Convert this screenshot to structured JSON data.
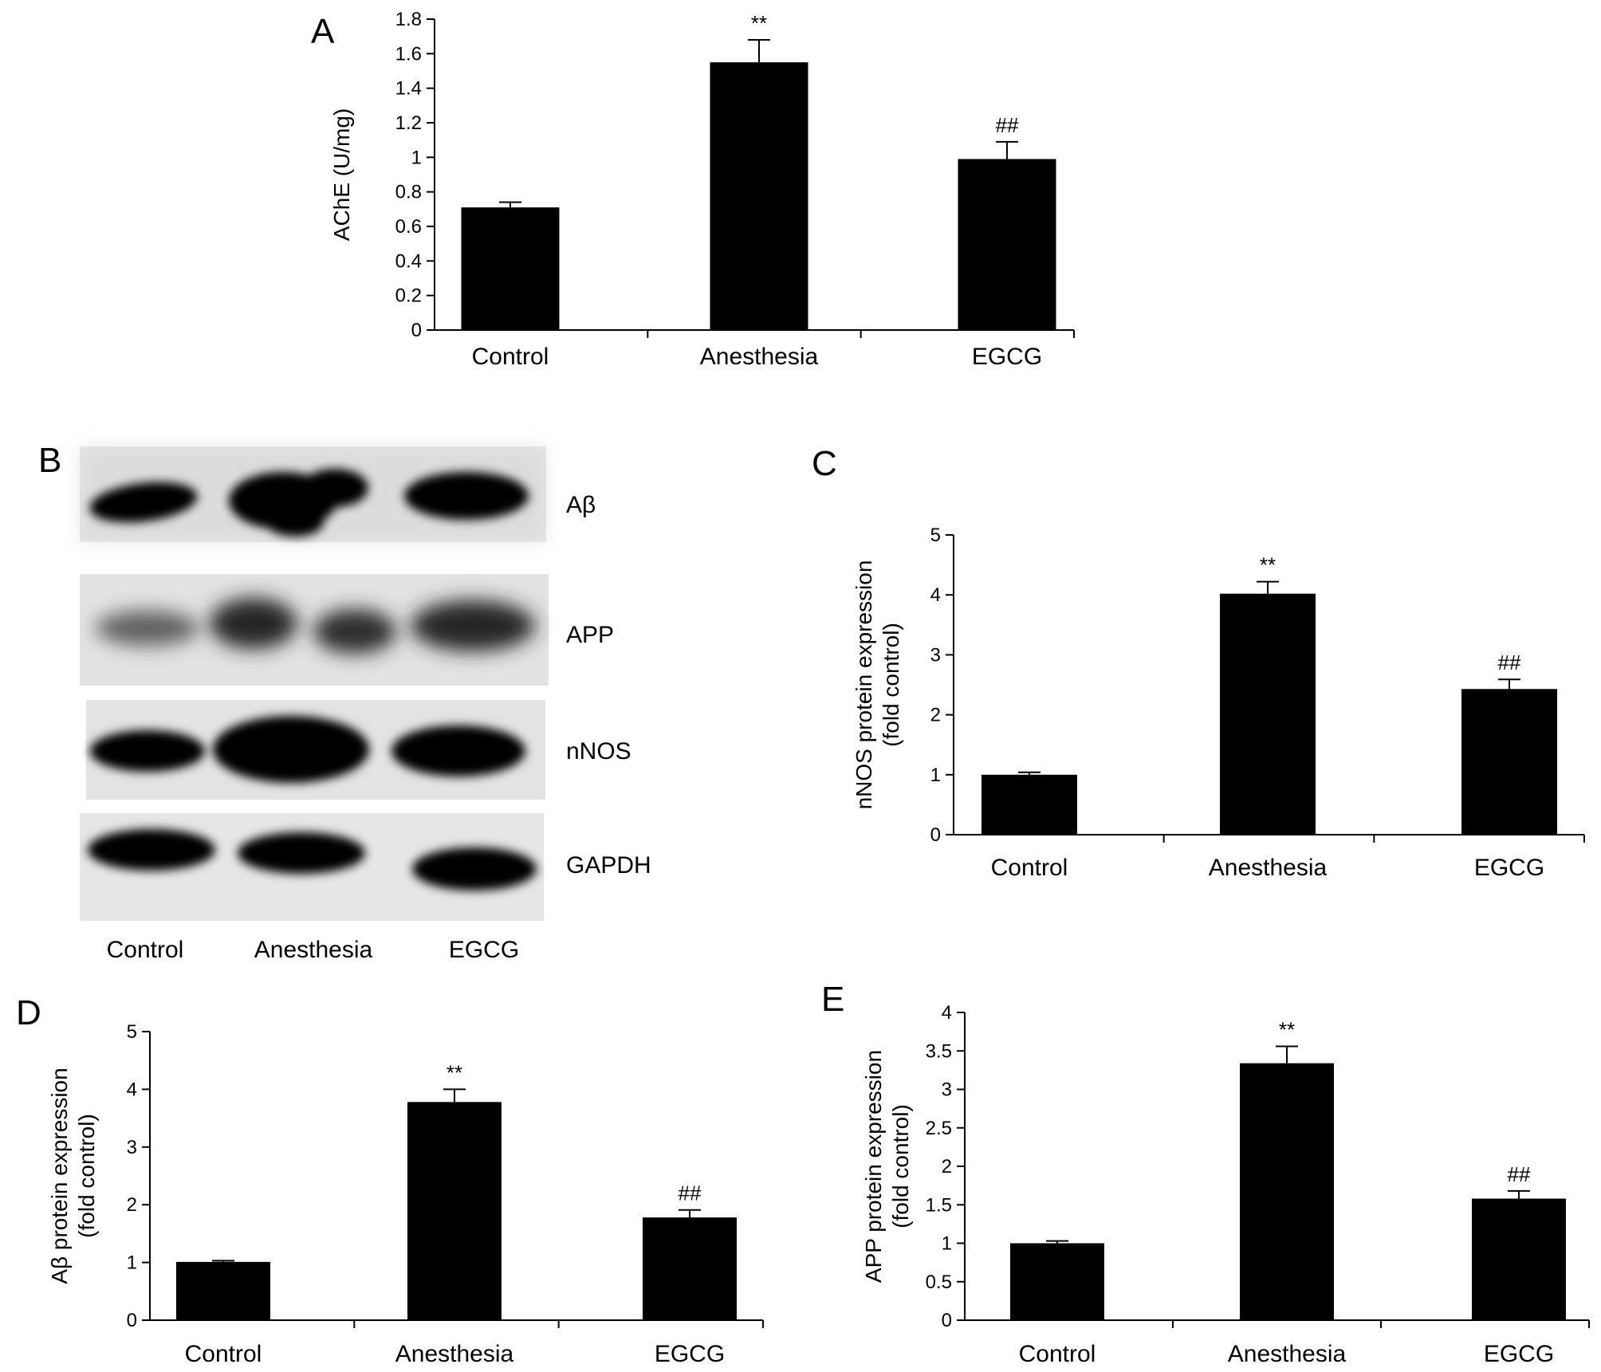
{
  "chart_data": [
    {
      "id": "A",
      "type": "bar",
      "panel_label": "A",
      "categories": [
        "Control",
        "Anesthesia",
        "EGCG"
      ],
      "values": [
        0.71,
        1.55,
        0.99
      ],
      "errors": [
        0.03,
        0.13,
        0.1
      ],
      "annotations": [
        "",
        "**",
        "##"
      ],
      "ylabel": "AChE (U/mg)",
      "ylim": [
        0,
        1.8
      ],
      "yticks": [
        0,
        0.2,
        0.4,
        0.6,
        0.8,
        1,
        1.2,
        1.4,
        1.6,
        1.8
      ],
      "ytick_labels": [
        "0",
        "0.2",
        "0.4",
        "0.6",
        "0.8",
        "1",
        "1.2",
        "1.4",
        "1.6",
        "1.8"
      ],
      "bar_color": "#000000",
      "grid": false
    },
    {
      "id": "C",
      "type": "bar",
      "panel_label": "C",
      "categories": [
        "Control",
        "Anesthesia",
        "EGCG"
      ],
      "values": [
        1.0,
        4.02,
        2.43
      ],
      "errors": [
        0.04,
        0.2,
        0.16
      ],
      "annotations": [
        "",
        "**",
        "##"
      ],
      "ylabel_lines": [
        "nNOS protein expression",
        "(fold control)"
      ],
      "ylim": [
        0,
        5
      ],
      "yticks": [
        0,
        1,
        2,
        3,
        4,
        5
      ],
      "ytick_labels": [
        "0",
        "1",
        "2",
        "3",
        "4",
        "5"
      ],
      "bar_color": "#000000",
      "grid": false
    },
    {
      "id": "D",
      "type": "bar",
      "panel_label": "D",
      "categories": [
        "Control",
        "Anesthesia",
        "EGCG"
      ],
      "values": [
        1.01,
        3.78,
        1.78
      ],
      "errors": [
        0.02,
        0.22,
        0.13
      ],
      "annotations": [
        "",
        "**",
        "##"
      ],
      "ylabel_lines": [
        "Aβ protein expression",
        "(fold control)"
      ],
      "ylim": [
        0,
        5
      ],
      "yticks": [
        0,
        1,
        2,
        3,
        4,
        5
      ],
      "ytick_labels": [
        "0",
        "1",
        "2",
        "3",
        "4",
        "5"
      ],
      "bar_color": "#000000",
      "grid": false
    },
    {
      "id": "E",
      "type": "bar",
      "panel_label": "E",
      "categories": [
        "Control",
        "Anesthesia",
        "EGCG"
      ],
      "values": [
        1.0,
        3.34,
        1.58
      ],
      "errors": [
        0.03,
        0.22,
        0.1
      ],
      "annotations": [
        "",
        "**",
        "##"
      ],
      "ylabel_lines": [
        "APP protein expression",
        "(fold control)"
      ],
      "ylim": [
        0,
        4
      ],
      "yticks": [
        0,
        0.5,
        1,
        1.5,
        2,
        2.5,
        3,
        3.5,
        4
      ],
      "ytick_labels": [
        "0",
        "0.5",
        "1",
        "1.5",
        "2",
        "2.5",
        "3",
        "3.5",
        "4"
      ],
      "bar_color": "#000000",
      "grid": false
    }
  ],
  "blot": {
    "panel_label": "B",
    "band_labels": [
      "Aβ",
      "APP",
      "nNOS",
      "GAPDH"
    ],
    "lane_labels": [
      "Control",
      "Anesthesia",
      "EGCG"
    ]
  }
}
